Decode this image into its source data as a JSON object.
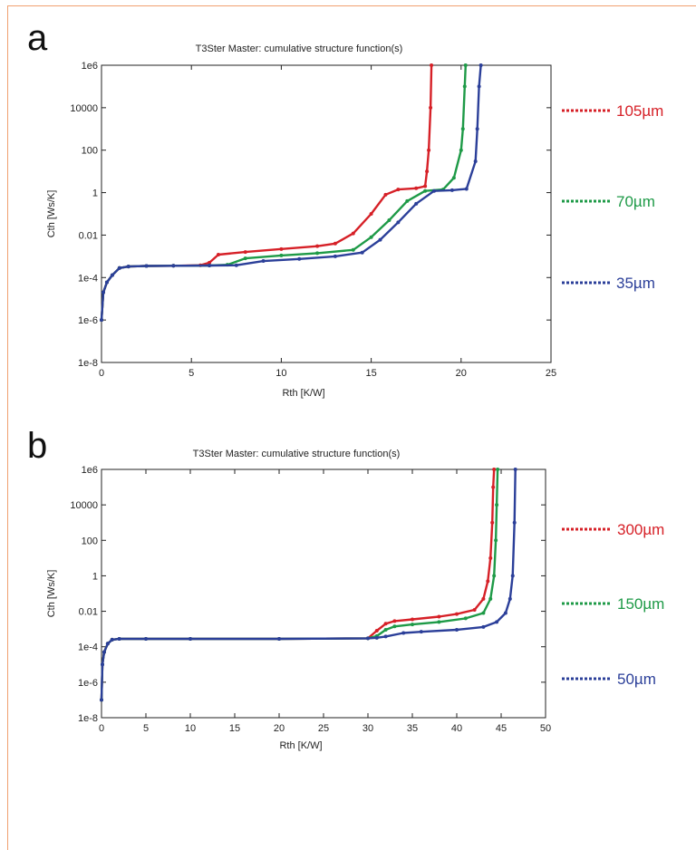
{
  "panels": [
    {
      "letter": "a"
    },
    {
      "letter": "b"
    }
  ],
  "chart_data": [
    {
      "type": "line",
      "title": "T3Ster Master: cumulative structure function(s)",
      "xlabel": "Rth  [K/W]",
      "ylabel": "Cth  [Ws/K]",
      "xlim": [
        0,
        25
      ],
      "ylim": [
        1e-08,
        1000000.0
      ],
      "ylog": true,
      "xticks": [
        0,
        5,
        10,
        15,
        20,
        25
      ],
      "yticks": [
        1e-08,
        1e-06,
        0.0001,
        0.01,
        1,
        100,
        10000,
        1000000.0
      ],
      "ytick_labels": [
        "1e-8",
        "1e-6",
        "1e-4",
        "0.01",
        "1",
        "100",
        "10000",
        "1e6"
      ],
      "legend_position": "right",
      "series": [
        {
          "name": "105µm",
          "color": "#d62027",
          "x": [
            0,
            0.1,
            0.3,
            0.6,
            1.0,
            1.5,
            2.5,
            4,
            5.5,
            6,
            6.5,
            8,
            10,
            12,
            13,
            14,
            15,
            15.8,
            16.5,
            17.5,
            18.0,
            18.1,
            18.2,
            18.3,
            18.35
          ],
          "y": [
            1e-06,
            2e-05,
            6e-05,
            0.00013,
            0.00028,
            0.00033,
            0.00035,
            0.00036,
            0.00038,
            0.0005,
            0.0012,
            0.0016,
            0.0022,
            0.003,
            0.004,
            0.012,
            0.1,
            0.8,
            1.4,
            1.6,
            2.0,
            10,
            100,
            10000,
            1000000.0
          ]
        },
        {
          "name": "70µm",
          "color": "#1e9a47",
          "x": [
            0,
            0.1,
            0.3,
            0.6,
            1.0,
            1.5,
            2.5,
            4,
            6,
            7,
            8,
            10,
            12,
            14,
            15,
            16,
            17,
            18,
            19,
            19.6,
            20.0,
            20.1,
            20.2,
            20.25
          ],
          "y": [
            1e-06,
            2e-05,
            6e-05,
            0.00013,
            0.00028,
            0.00033,
            0.00035,
            0.00036,
            0.00037,
            0.0004,
            0.0008,
            0.0011,
            0.0014,
            0.002,
            0.008,
            0.05,
            0.4,
            1.2,
            1.4,
            5,
            100,
            1000,
            100000.0,
            1000000.0
          ]
        },
        {
          "name": "35µm",
          "color": "#2b3f99",
          "x": [
            0,
            0.1,
            0.3,
            0.6,
            1.0,
            1.5,
            2.5,
            4,
            6,
            7.5,
            9,
            11,
            13,
            14.5,
            15.5,
            16.5,
            17.5,
            18.5,
            19.5,
            20.3,
            20.8,
            20.9,
            21.0,
            21.1
          ],
          "y": [
            1e-06,
            2e-05,
            6e-05,
            0.00013,
            0.00028,
            0.00033,
            0.00035,
            0.00036,
            0.00037,
            0.00038,
            0.0006,
            0.00075,
            0.001,
            0.0015,
            0.006,
            0.04,
            0.3,
            1.2,
            1.3,
            1.5,
            30,
            1000,
            100000.0,
            1000000.0
          ]
        }
      ]
    },
    {
      "type": "line",
      "title": "T3Ster Master: cumulative structure function(s)",
      "xlabel": "Rth  [K/W]",
      "ylabel": "Cth  [Ws/K]",
      "xlim": [
        0,
        50
      ],
      "ylim": [
        1e-08,
        1000000.0
      ],
      "ylog": true,
      "xticks": [
        0,
        5,
        10,
        15,
        20,
        25,
        30,
        35,
        40,
        45,
        50
      ],
      "yticks": [
        1e-08,
        1e-06,
        0.0001,
        0.01,
        1,
        100,
        10000,
        1000000.0
      ],
      "ytick_labels": [
        "1e-8",
        "1e-6",
        "1e-4",
        "0.01",
        "1",
        "100",
        "10000",
        "1e6"
      ],
      "legend_position": "right",
      "series": [
        {
          "name": "300µm",
          "color": "#d62027",
          "x": [
            0,
            0.1,
            0.3,
            0.7,
            1.2,
            2,
            5,
            10,
            20,
            30,
            31,
            32,
            33,
            35,
            38,
            40,
            42,
            43,
            43.5,
            43.8,
            44.0,
            44.1,
            44.2
          ],
          "y": [
            1e-07,
            1e-05,
            5e-05,
            0.00015,
            0.00025,
            0.00028,
            0.00028,
            0.00028,
            0.00028,
            0.0003,
            0.0008,
            0.002,
            0.0028,
            0.0035,
            0.005,
            0.007,
            0.012,
            0.05,
            0.5,
            10,
            1000,
            100000.0,
            1000000.0
          ]
        },
        {
          "name": "150µm",
          "color": "#1e9a47",
          "x": [
            0,
            0.1,
            0.3,
            0.7,
            1.2,
            2,
            5,
            10,
            20,
            30,
            31,
            32,
            33,
            35,
            38,
            41,
            43,
            43.8,
            44.2,
            44.4,
            44.5,
            44.6
          ],
          "y": [
            1e-07,
            1e-05,
            5e-05,
            0.00015,
            0.00025,
            0.00028,
            0.00028,
            0.00028,
            0.00028,
            0.0003,
            0.0004,
            0.0009,
            0.0014,
            0.0018,
            0.0025,
            0.004,
            0.008,
            0.05,
            1,
            100,
            10000.0,
            1000000.0
          ]
        },
        {
          "name": "50µm",
          "color": "#2b3f99",
          "x": [
            0,
            0.1,
            0.3,
            0.7,
            1.2,
            2,
            5,
            10,
            20,
            30,
            31,
            32,
            34,
            36,
            40,
            43,
            44.5,
            45.5,
            46,
            46.3,
            46.5,
            46.6
          ],
          "y": [
            1e-07,
            1e-05,
            5e-05,
            0.00015,
            0.00025,
            0.00028,
            0.00028,
            0.00028,
            0.00028,
            0.0003,
            0.00032,
            0.00038,
            0.0006,
            0.0007,
            0.0009,
            0.0013,
            0.0025,
            0.008,
            0.05,
            1,
            1000,
            1000000.0
          ]
        }
      ]
    }
  ]
}
